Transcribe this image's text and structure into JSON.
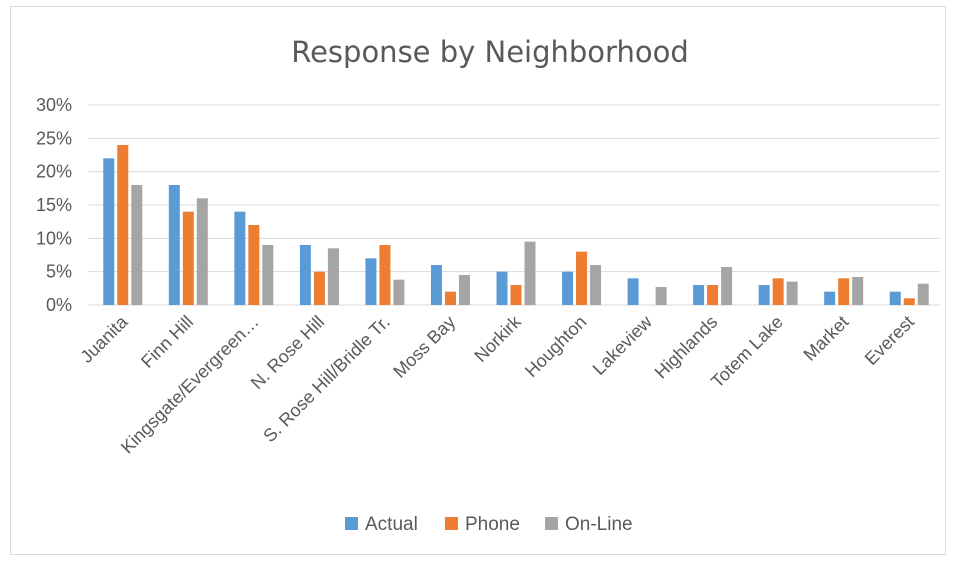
{
  "chart_data": {
    "type": "bar",
    "title": "Response by Neighborhood",
    "xlabel": "",
    "ylabel": "",
    "ylim": [
      0,
      0.3
    ],
    "yticks": [
      0,
      0.05,
      0.1,
      0.15,
      0.2,
      0.25,
      0.3
    ],
    "ytick_labels": [
      "0%",
      "5%",
      "10%",
      "15%",
      "20%",
      "25%",
      "30%"
    ],
    "grid": true,
    "legend_position": "bottom",
    "categories": [
      "Juanita",
      "Finn Hill",
      "Kingsgate/Evergreen…",
      "N. Rose Hill",
      "S. Rose Hill/Bridle Tr.",
      "Moss Bay",
      "Norkirk",
      "Houghton",
      "Lakeview",
      "Highlands",
      "Totem Lake",
      "Market",
      "Everest"
    ],
    "series": [
      {
        "name": "Actual",
        "color": "#5b9bd5",
        "values": [
          0.22,
          0.18,
          0.14,
          0.09,
          0.07,
          0.06,
          0.05,
          0.05,
          0.04,
          0.03,
          0.03,
          0.02,
          0.02
        ]
      },
      {
        "name": "Phone",
        "color": "#ed7d31",
        "values": [
          0.24,
          0.14,
          0.12,
          0.05,
          0.09,
          0.02,
          0.03,
          0.08,
          0.0,
          0.03,
          0.04,
          0.04,
          0.01
        ]
      },
      {
        "name": "On-Line",
        "color": "#a5a5a5",
        "values": [
          0.18,
          0.16,
          0.09,
          0.085,
          0.038,
          0.045,
          0.095,
          0.06,
          0.027,
          0.057,
          0.035,
          0.042,
          0.032
        ]
      }
    ]
  }
}
